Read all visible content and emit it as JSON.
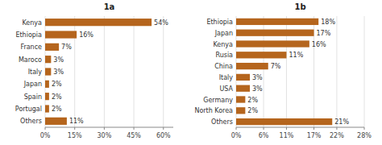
{
  "chart_data": [
    {
      "type": "bar",
      "orientation": "horizontal",
      "title": "1a",
      "categories": [
        "Kenya",
        "Ethiopia",
        "France",
        "Maroco",
        "Italy",
        "Japan",
        "Spain",
        "Portugal",
        "Others"
      ],
      "values": [
        54,
        16,
        7,
        3,
        3,
        2,
        2,
        2,
        11
      ],
      "value_labels": [
        "54%",
        "16%",
        "7%",
        "3%",
        "3%",
        "2%",
        "2%",
        "2%",
        "11%"
      ],
      "color": "#b5651d",
      "xlim": [
        0,
        65
      ],
      "xticks": [
        {
          "value": 0,
          "label": "0%"
        },
        {
          "value": 15,
          "label": "15%"
        },
        {
          "value": 30,
          "label": "30%"
        },
        {
          "value": 45,
          "label": "45%"
        },
        {
          "value": 60,
          "label": "60%"
        }
      ],
      "grid": true,
      "data_labels": true
    },
    {
      "type": "bar",
      "orientation": "horizontal",
      "title": "1b",
      "categories": [
        "Ethiopia",
        "Japan",
        "Kenya",
        "Rusia",
        "China",
        "Italy",
        "USA",
        "Germany",
        "North Korea",
        "Others"
      ],
      "values": [
        18,
        17,
        16,
        11,
        7,
        3,
        3,
        2,
        2,
        21
      ],
      "value_labels": [
        "18%",
        "17%",
        "16%",
        "11%",
        "7%",
        "3%",
        "3%",
        "2%",
        "2%",
        "21%"
      ],
      "color": "#b5651d",
      "xlim": [
        0,
        28
      ],
      "xticks": [
        {
          "value": 0,
          "label": "0%"
        },
        {
          "value": 6,
          "label": "6%"
        },
        {
          "value": 11,
          "label": "11%"
        },
        {
          "value": 17,
          "label": "17%"
        },
        {
          "value": 22,
          "label": "22%"
        },
        {
          "value": 28,
          "label": "28%"
        }
      ],
      "grid": true,
      "data_labels": true
    }
  ]
}
